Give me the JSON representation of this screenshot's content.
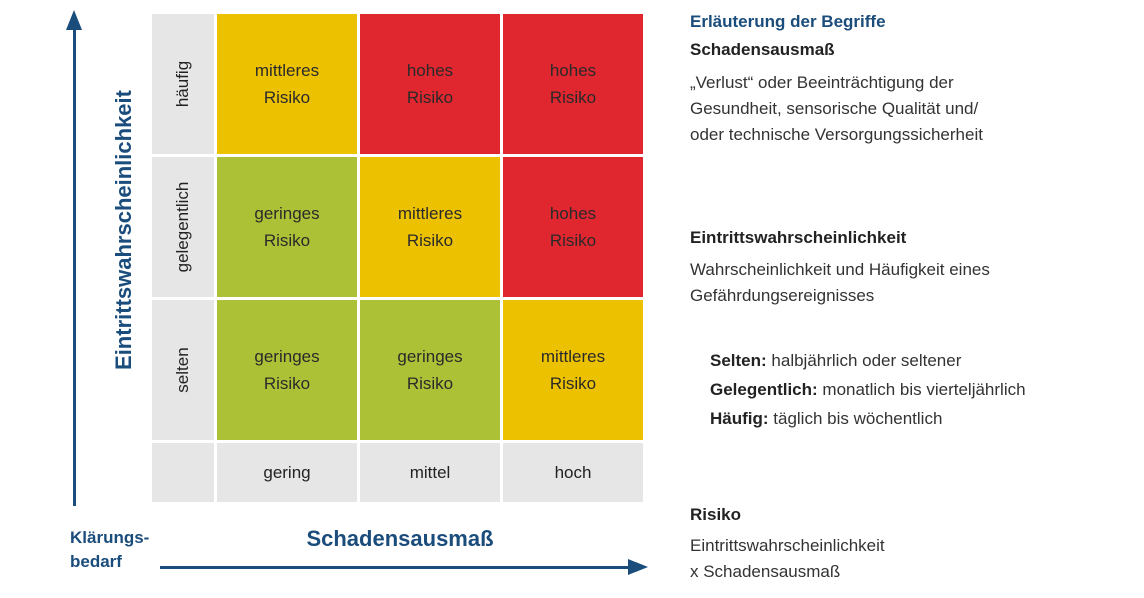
{
  "axes": {
    "y_title": "Eintrittswahrscheinlichkeit",
    "x_title": "Schadensausmaß",
    "klaerung_line1": "Klärungs-",
    "klaerung_line2": "bedarf",
    "color": "#1a4c7c"
  },
  "matrix": {
    "row_labels": [
      "häufig",
      "gelegentlich",
      "selten"
    ],
    "col_labels": [
      "gering",
      "mittel",
      "hoch"
    ],
    "colors": {
      "hoch": "#e0262f",
      "mittel": "#ecc100",
      "gering": "#adc137",
      "label_bg": "#e6e6e6"
    },
    "cells": [
      [
        {
          "line1": "mittleres",
          "line2": "Risiko",
          "level": "mittel"
        },
        {
          "line1": "hohes",
          "line2": "Risiko",
          "level": "hoch"
        },
        {
          "line1": "hohes",
          "line2": "Risiko",
          "level": "hoch"
        }
      ],
      [
        {
          "line1": "geringes",
          "line2": "Risiko",
          "level": "gering"
        },
        {
          "line1": "mittleres",
          "line2": "Risiko",
          "level": "mittel"
        },
        {
          "line1": "hohes",
          "line2": "Risiko",
          "level": "hoch"
        }
      ],
      [
        {
          "line1": "geringes",
          "line2": "Risiko",
          "level": "gering"
        },
        {
          "line1": "geringes",
          "line2": "Risiko",
          "level": "gering"
        },
        {
          "line1": "mittleres",
          "line2": "Risiko",
          "level": "mittel"
        }
      ]
    ]
  },
  "legend": {
    "heading": "Erläuterung der Begriffe",
    "schaden_title": "Schadensausmaß",
    "schaden_desc": [
      "„Verlust“ oder Beeinträchtigung der",
      "Gesundheit, sensorische Qualität und/",
      "oder technische Versorgungssicherheit"
    ],
    "eintritt_title": "Eintrittswahrscheinlichkeit",
    "eintritt_desc": [
      "Wahrscheinlichkeit und Häufigkeit eines",
      "Gefährdungsereignisses"
    ],
    "freq": [
      {
        "term": "Selten:",
        "desc": " halbjährlich oder seltener"
      },
      {
        "term": "Gelegentlich:",
        "desc": " monatlich bis vierteljährlich"
      },
      {
        "term": "Häufig:",
        "desc": " täglich bis wöchentlich"
      }
    ],
    "risiko_title": "Risiko",
    "risiko_desc": [
      "Eintrittswahrscheinlichkeit",
      "x Schadensausmaß"
    ]
  }
}
